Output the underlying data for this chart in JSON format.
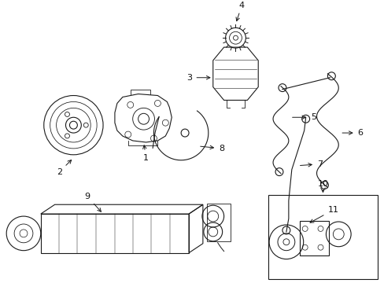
{
  "bg_color": "#ffffff",
  "line_color": "#1a1a1a",
  "label_color": "#111111",
  "figsize": [
    4.89,
    3.6
  ],
  "dpi": 100,
  "lw": 0.8
}
